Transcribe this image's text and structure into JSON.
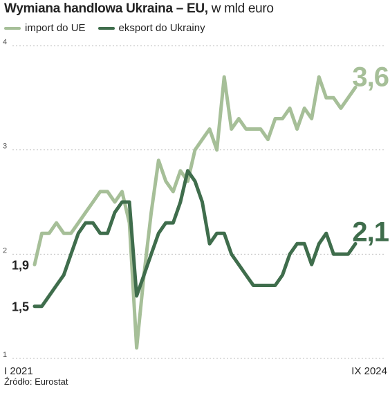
{
  "title": {
    "bold": "Wymiana handlowa Ukraina – EU,",
    "normal": " w mld euro"
  },
  "source": "Źródło: Eurostat",
  "colors": {
    "import": "#a6bf98",
    "export": "#3f6d4c",
    "grid": "#bdbdbd"
  },
  "chart_data": {
    "type": "line",
    "x_start_label": "I 2021",
    "x_end_label": "IX 2024",
    "ylim": [
      1,
      4
    ],
    "yticks": [
      "1",
      "2",
      "3",
      "4"
    ],
    "grid": "dotted horizontal",
    "legend_position": "top-left",
    "series": [
      {
        "name": "import do UE",
        "color": "#a6bf98",
        "start_label": "1,9",
        "end_label": "3,6",
        "values": [
          1.9,
          2.2,
          2.2,
          2.3,
          2.2,
          2.2,
          2.3,
          2.4,
          2.5,
          2.6,
          2.6,
          2.5,
          2.6,
          2.3,
          1.1,
          1.8,
          2.4,
          2.9,
          2.7,
          2.6,
          2.8,
          2.7,
          3.0,
          3.1,
          3.2,
          3.0,
          3.7,
          3.2,
          3.3,
          3.2,
          3.2,
          3.2,
          3.1,
          3.3,
          3.3,
          3.4,
          3.2,
          3.4,
          3.3,
          3.7,
          3.5,
          3.5,
          3.4,
          3.5,
          3.6
        ]
      },
      {
        "name": "eksport do Ukrainy",
        "color": "#3f6d4c",
        "start_label": "1,5",
        "end_label": "2,1",
        "values": [
          1.5,
          1.5,
          1.6,
          1.7,
          1.8,
          2.0,
          2.2,
          2.3,
          2.3,
          2.2,
          2.2,
          2.4,
          2.5,
          2.5,
          1.6,
          1.8,
          2.0,
          2.2,
          2.3,
          2.3,
          2.5,
          2.8,
          2.7,
          2.5,
          2.1,
          2.2,
          2.2,
          2.0,
          1.9,
          1.8,
          1.7,
          1.7,
          1.7,
          1.7,
          1.8,
          2.0,
          2.1,
          2.1,
          1.9,
          2.1,
          2.2,
          2.0,
          2.0,
          2.0,
          2.1
        ]
      }
    ]
  }
}
